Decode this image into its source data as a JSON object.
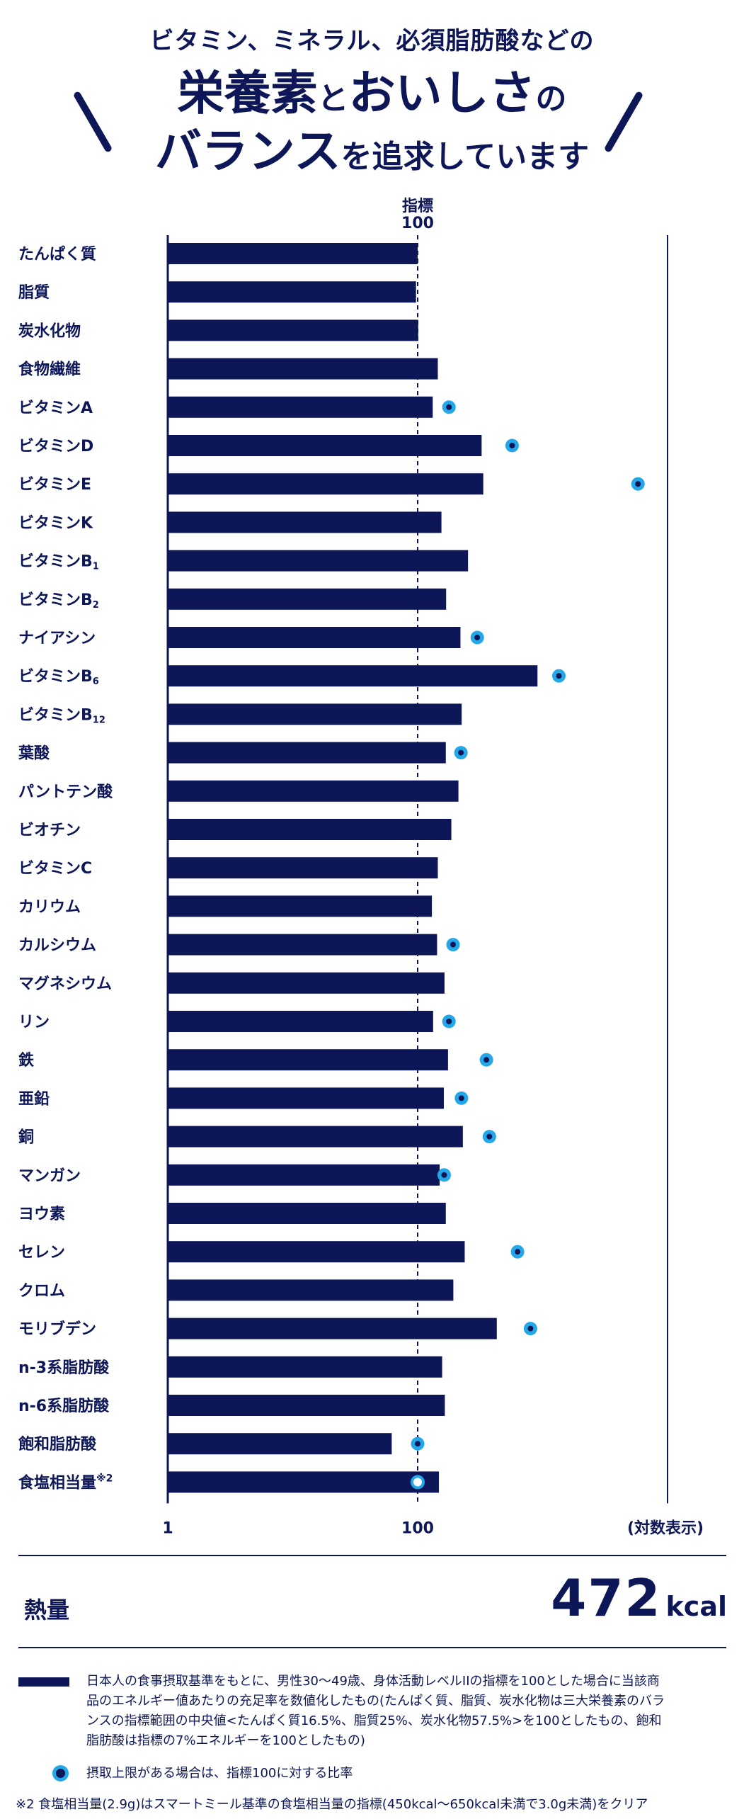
{
  "header": {
    "line1": "ビタミン、ミネラル、必須脂肪酸などの",
    "line2_a": "栄養素",
    "line2_b": "と",
    "line2_c": "おいしさ",
    "line2_d": "の",
    "line3_a": "バランス",
    "line3_b": "を追求しています"
  },
  "chart_data": {
    "type": "bar",
    "orientation": "horizontal",
    "scale": "log",
    "reference_label_1": "指標",
    "reference_label_2": "100",
    "reference_value": 100,
    "xlim": [
      1,
      10000
    ],
    "x_tick_labels": [
      "1",
      "100"
    ],
    "x_tick_values": [
      1,
      100
    ],
    "xlabel": "(対数表示)",
    "categories": [
      {
        "name": "たんぱく質",
        "sup": "",
        "value": 100,
        "upper": null
      },
      {
        "name": "脂質",
        "sup": "",
        "value": 97,
        "upper": null
      },
      {
        "name": "炭水化物",
        "sup": "",
        "value": 101,
        "upper": null
      },
      {
        "name": "食物繊維",
        "sup": "",
        "value": 145,
        "upper": null
      },
      {
        "name": "ビタミンA",
        "sup": "",
        "value": 132,
        "upper": 178
      },
      {
        "name": "ビタミンD",
        "sup": "",
        "value": 325,
        "upper": 570
      },
      {
        "name": "ビタミンE",
        "sup": "",
        "value": 335,
        "upper": 5800
      },
      {
        "name": "ビタミンK",
        "sup": "",
        "value": 155,
        "upper": null
      },
      {
        "name": "ビタミンB",
        "sup": "1",
        "value": 253,
        "upper": null
      },
      {
        "name": "ビタミンB",
        "sup": "2",
        "value": 169,
        "upper": null
      },
      {
        "name": "ナイアシン",
        "sup": "",
        "value": 220,
        "upper": 300
      },
      {
        "name": "ビタミンB",
        "sup": "6",
        "value": 910,
        "upper": 1350
      },
      {
        "name": "ビタミンB",
        "sup": "12",
        "value": 225,
        "upper": null
      },
      {
        "name": "葉酸",
        "sup": "",
        "value": 168,
        "upper": 222
      },
      {
        "name": "パントテン酸",
        "sup": "",
        "value": 212,
        "upper": null
      },
      {
        "name": "ビオチン",
        "sup": "",
        "value": 186,
        "upper": null
      },
      {
        "name": "ビタミンC",
        "sup": "",
        "value": 145,
        "upper": null
      },
      {
        "name": "カリウム",
        "sup": "",
        "value": 130,
        "upper": null
      },
      {
        "name": "カルシウム",
        "sup": "",
        "value": 143,
        "upper": 192
      },
      {
        "name": "マグネシウム",
        "sup": "",
        "value": 164,
        "upper": null
      },
      {
        "name": "リン",
        "sup": "",
        "value": 133,
        "upper": 178
      },
      {
        "name": "鉄",
        "sup": "",
        "value": 175,
        "upper": 355
      },
      {
        "name": "亜鉛",
        "sup": "",
        "value": 162,
        "upper": 224
      },
      {
        "name": "銅",
        "sup": "",
        "value": 230,
        "upper": 375
      },
      {
        "name": "マンガン",
        "sup": "",
        "value": 150,
        "upper": 163
      },
      {
        "name": "ヨウ素",
        "sup": "",
        "value": 168,
        "upper": null
      },
      {
        "name": "セレン",
        "sup": "",
        "value": 238,
        "upper": 630
      },
      {
        "name": "クロム",
        "sup": "",
        "value": 193,
        "upper": null
      },
      {
        "name": "モリブデン",
        "sup": "",
        "value": 430,
        "upper": 800
      },
      {
        "name": "n-3系脂肪酸",
        "sup": "",
        "value": 157,
        "upper": null
      },
      {
        "name": "n-6系脂肪酸",
        "sup": "",
        "value": 165,
        "upper": null
      },
      {
        "name": "飽和脂肪酸",
        "sup": "",
        "value": 62,
        "upper": 100
      },
      {
        "name": "食塩相当量",
        "sup": "※2",
        "value": 148,
        "upper": 100,
        "upper_hollow": true
      }
    ],
    "colors": {
      "bar": "#0d1757",
      "dot_ring": "#23a7e8",
      "dot_center": "#0d1757"
    }
  },
  "energy": {
    "label": "熱量",
    "value": "472",
    "unit": "kcal"
  },
  "legend": {
    "bar_text_1": "日本人の食事摂取基準をもとに、男性30〜49歳、身体活動レベルIIの指標を100とした場合に当該商",
    "bar_text_2": "品のエネルギー値あたりの充足率を数値化したもの(たんぱく質、脂質、炭水化物は三大栄養素のバラ",
    "bar_text_3": "ンスの指標範囲の中央値<たんぱく質16.5%、脂質25%、炭水化物57.5%>を100としたもの、飽和",
    "bar_text_4": "脂肪酸は指標の7%エネルギーを100としたもの)",
    "dot_text": "摂取上限がある場合は、指標100に対する比率"
  },
  "footnote": "※2 食塩相当量(2.9g)はスマートミール基準の食塩相当量の指標(450kcal〜650kcal未満で3.0g未満)をクリア"
}
